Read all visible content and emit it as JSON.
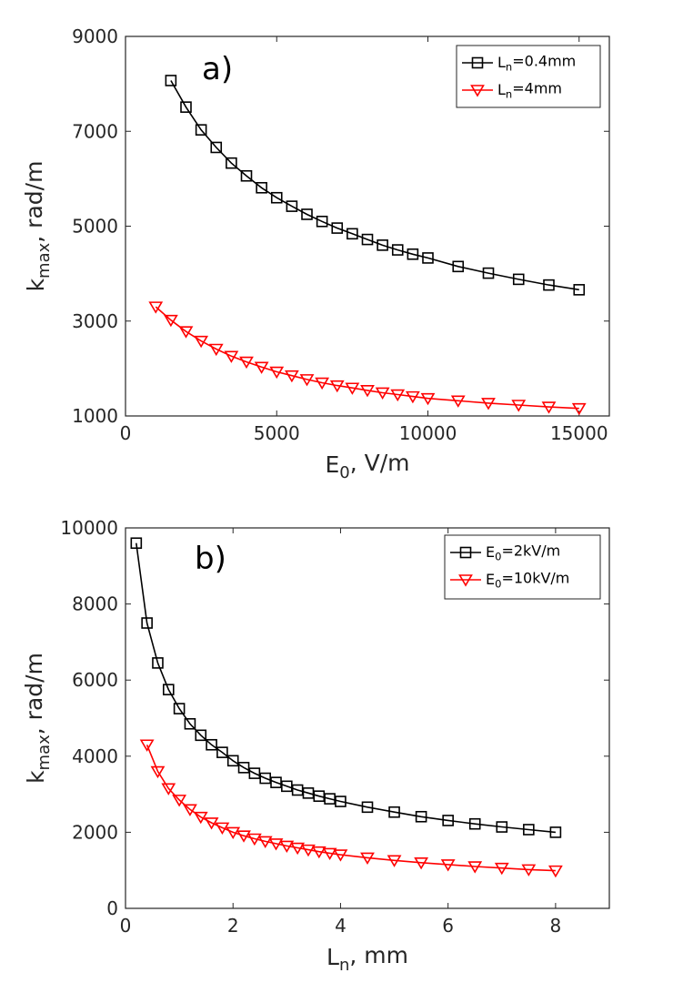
{
  "chart_data": [
    {
      "type": "line",
      "panel_label": "a)",
      "xlabel": {
        "base": "E",
        "sub": "0",
        "rest": ", V/m"
      },
      "ylabel": {
        "base": "k",
        "sub": "max",
        "rest": ", rad/m"
      },
      "xlim": [
        0,
        16000
      ],
      "ylim": [
        1000,
        9000
      ],
      "xticks": [
        0,
        5000,
        10000,
        15000
      ],
      "yticks": [
        1000,
        3000,
        5000,
        7000,
        9000
      ],
      "legend_position": "top-right",
      "series": [
        {
          "name": "Ln=0.4mm",
          "legend": {
            "base": "L",
            "sub": "n",
            "rest": "=0.4mm"
          },
          "marker": "square",
          "color": "#000000",
          "x": [
            1500,
            2000,
            2500,
            3000,
            3500,
            4000,
            4500,
            5000,
            5500,
            6000,
            6500,
            7000,
            7500,
            8000,
            8500,
            9000,
            9500,
            10000,
            11000,
            12000,
            13000,
            14000,
            15000
          ],
          "y": [
            8070,
            7510,
            7030,
            6660,
            6330,
            6060,
            5810,
            5600,
            5420,
            5250,
            5100,
            4960,
            4840,
            4720,
            4600,
            4500,
            4410,
            4330,
            4150,
            4010,
            3880,
            3760,
            3660
          ]
        },
        {
          "name": "Ln=4mm",
          "legend": {
            "base": "L",
            "sub": "n",
            "rest": "=4mm"
          },
          "marker": "triangle-down",
          "color": "#ff0000",
          "x": [
            1000,
            1500,
            2000,
            2500,
            3000,
            3500,
            4000,
            4500,
            5000,
            5500,
            6000,
            6500,
            7000,
            7500,
            8000,
            8500,
            9000,
            9500,
            10000,
            11000,
            12000,
            13000,
            14000,
            15000
          ],
          "y": [
            3300,
            3020,
            2780,
            2580,
            2410,
            2260,
            2140,
            2030,
            1930,
            1850,
            1770,
            1700,
            1640,
            1590,
            1540,
            1490,
            1450,
            1410,
            1370,
            1320,
            1270,
            1230,
            1190,
            1160
          ]
        }
      ]
    },
    {
      "type": "line",
      "panel_label": "b)",
      "xlabel": {
        "base": "L",
        "sub": "n",
        "rest": ", mm"
      },
      "ylabel": {
        "base": "k",
        "sub": "max",
        "rest": ", rad/m"
      },
      "xlim": [
        0,
        9
      ],
      "ylim": [
        0,
        10000
      ],
      "xticks": [
        0,
        2,
        4,
        6,
        8
      ],
      "yticks": [
        0,
        2000,
        4000,
        6000,
        8000,
        10000
      ],
      "legend_position": "top-right",
      "series": [
        {
          "name": "E0=2kV/m",
          "legend": {
            "base": "E",
            "sub": "0",
            "rest": "=2kV/m"
          },
          "marker": "square",
          "color": "#000000",
          "x": [
            0.2,
            0.4,
            0.6,
            0.8,
            1.0,
            1.2,
            1.4,
            1.6,
            1.8,
            2.0,
            2.2,
            2.4,
            2.6,
            2.8,
            3.0,
            3.2,
            3.4,
            3.6,
            3.8,
            4.0,
            4.5,
            5.0,
            5.5,
            6.0,
            6.5,
            7.0,
            7.5,
            8.0
          ],
          "y": [
            9600,
            7500,
            6450,
            5750,
            5250,
            4850,
            4550,
            4300,
            4100,
            3880,
            3700,
            3550,
            3420,
            3310,
            3210,
            3110,
            3030,
            2950,
            2880,
            2810,
            2660,
            2530,
            2410,
            2310,
            2220,
            2140,
            2070,
            2000
          ]
        },
        {
          "name": "E0=10kV/m",
          "legend": {
            "base": "E",
            "sub": "0",
            "rest": "=10kV/m"
          },
          "marker": "triangle-down",
          "color": "#ff0000",
          "x": [
            0.4,
            0.6,
            0.8,
            1.0,
            1.2,
            1.4,
            1.6,
            1.8,
            2.0,
            2.2,
            2.4,
            2.6,
            2.8,
            3.0,
            3.2,
            3.4,
            3.6,
            3.8,
            4.0,
            4.5,
            5.0,
            5.5,
            6.0,
            6.5,
            7.0,
            7.5,
            8.0
          ],
          "y": [
            4300,
            3600,
            3150,
            2850,
            2600,
            2400,
            2250,
            2120,
            2000,
            1910,
            1830,
            1760,
            1700,
            1640,
            1590,
            1540,
            1490,
            1450,
            1410,
            1330,
            1260,
            1200,
            1150,
            1100,
            1060,
            1020,
            990
          ]
        }
      ]
    }
  ]
}
